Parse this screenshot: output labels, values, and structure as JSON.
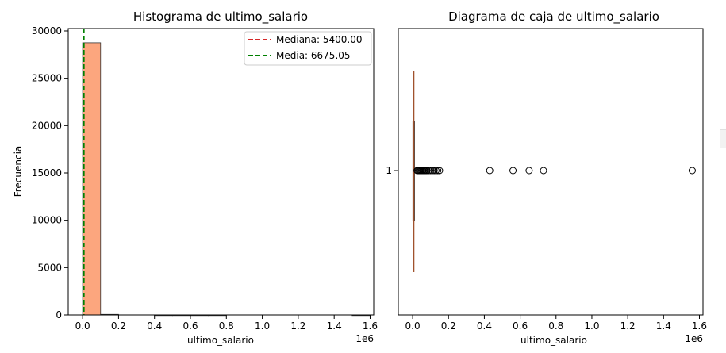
{
  "chart_data": [
    {
      "type": "bar",
      "title": "Histograma de ultimo_salario",
      "xlabel": "ultimo_salario",
      "ylabel": "Frecuencia",
      "x_offset_label": "1e6",
      "xlim": [
        -0.08,
        1.62
      ],
      "ylim": [
        0,
        30250
      ],
      "x_ticks": [
        0.0,
        0.2,
        0.4,
        0.6,
        0.8,
        1.0,
        1.2,
        1.4,
        1.6
      ],
      "x_tick_labels": [
        "0.0",
        "0.2",
        "0.4",
        "0.6",
        "0.8",
        "1.0",
        "1.2",
        "1.4",
        "1.6"
      ],
      "y_ticks": [
        0,
        5000,
        10000,
        15000,
        20000,
        25000,
        30000
      ],
      "y_tick_labels": [
        "0",
        "5000",
        "10000",
        "15000",
        "20000",
        "25000",
        "30000"
      ],
      "bins": [
        {
          "x0": 0.0,
          "x1": 0.1,
          "value": 28750
        },
        {
          "x0": 0.1,
          "x1": 0.2,
          "value": 60
        },
        {
          "x0": 0.2,
          "x1": 0.3,
          "value": 0
        },
        {
          "x0": 0.3,
          "x1": 0.4,
          "value": 0
        },
        {
          "x0": 0.4,
          "x1": 0.5,
          "value": 1
        },
        {
          "x0": 0.5,
          "x1": 0.6,
          "value": 1
        },
        {
          "x0": 0.6,
          "x1": 0.7,
          "value": 1
        },
        {
          "x0": 0.7,
          "x1": 0.8,
          "value": 1
        },
        {
          "x0": 0.8,
          "x1": 0.9,
          "value": 0
        },
        {
          "x0": 0.9,
          "x1": 1.0,
          "value": 0
        },
        {
          "x0": 1.0,
          "x1": 1.1,
          "value": 0
        },
        {
          "x0": 1.1,
          "x1": 1.2,
          "value": 0
        },
        {
          "x0": 1.2,
          "x1": 1.3,
          "value": 0
        },
        {
          "x0": 1.3,
          "x1": 1.4,
          "value": 0
        },
        {
          "x0": 1.4,
          "x1": 1.5,
          "value": 0
        },
        {
          "x0": 1.5,
          "x1": 1.6,
          "value": 1
        }
      ],
      "bar_color": "#fca67e",
      "bar_edge": "#333333",
      "lines": [
        {
          "label": "Mediana: 5400.00",
          "x": 0.0054,
          "color": "#d62728"
        },
        {
          "label": "Media: 6675.05",
          "x": 0.006675,
          "color": "#008000"
        }
      ],
      "legend": "top-right",
      "grid": false
    },
    {
      "type": "box",
      "title": "Diagrama de caja de ultimo_salario",
      "xlabel": "ultimo_salario",
      "x_offset_label": "1e6",
      "xlim": [
        -0.08,
        1.62
      ],
      "x_ticks": [
        0.0,
        0.2,
        0.4,
        0.6,
        0.8,
        1.0,
        1.2,
        1.4,
        1.6
      ],
      "x_tick_labels": [
        "0.0",
        "0.2",
        "0.4",
        "0.6",
        "0.8",
        "1.0",
        "1.2",
        "1.4",
        "1.6"
      ],
      "y_tick_labels": [
        "1"
      ],
      "box": {
        "q1": 0.0015,
        "median": 0.0054,
        "q3": 0.0098,
        "whisker_low": 0.0,
        "whisker_high": 0.022
      },
      "outliers": [
        0.025,
        0.03,
        0.035,
        0.04,
        0.045,
        0.05,
        0.055,
        0.06,
        0.065,
        0.07,
        0.075,
        0.08,
        0.09,
        0.1,
        0.11,
        0.12,
        0.13,
        0.14,
        0.15,
        0.43,
        0.56,
        0.65,
        0.73,
        1.56
      ],
      "box_color": "#fca67e",
      "median_color": "#a0522d",
      "grid": false
    }
  ]
}
